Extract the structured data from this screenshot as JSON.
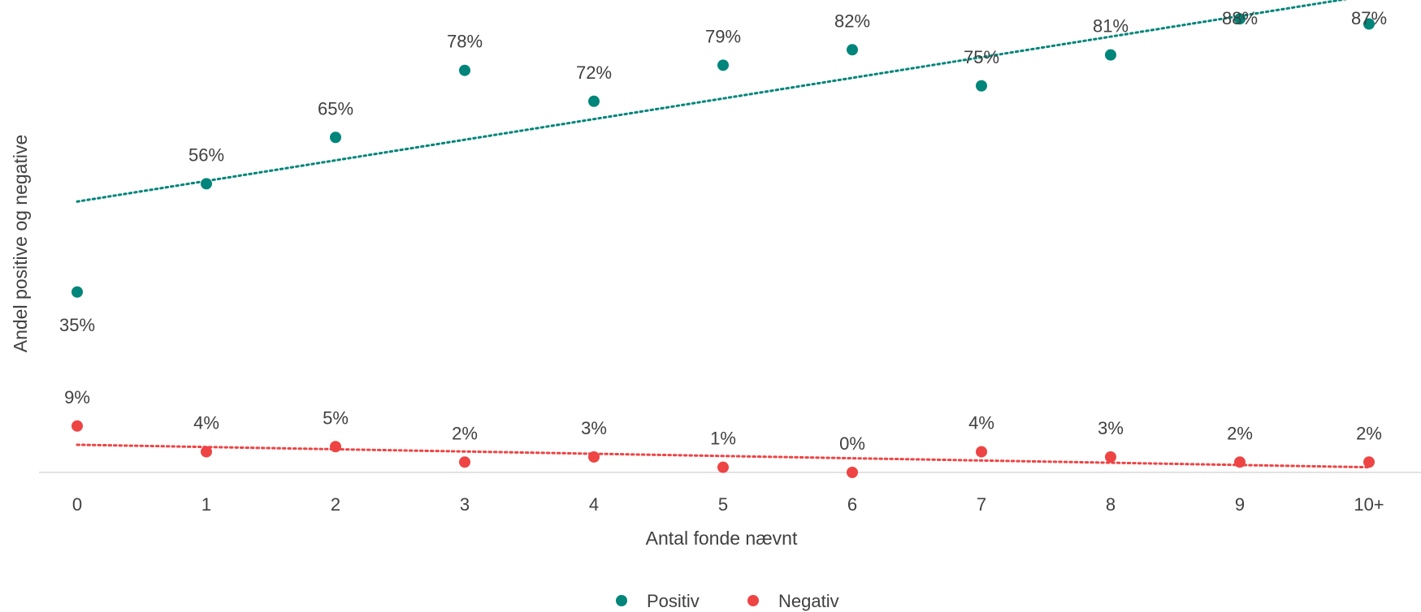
{
  "chart_data": {
    "type": "scatter",
    "title": "",
    "xlabel": "Antal fonde nævnt",
    "ylabel": "Andel positive og negative",
    "categories": [
      "0",
      "1",
      "2",
      "3",
      "4",
      "5",
      "6",
      "7",
      "8",
      "9",
      "10+"
    ],
    "ylim": [
      0,
      0.9
    ],
    "grid": false,
    "legend_position": "bottom",
    "series": [
      {
        "name": "Positiv",
        "color": "#00857A",
        "values": [
          0.35,
          0.56,
          0.65,
          0.78,
          0.72,
          0.79,
          0.82,
          0.75,
          0.81,
          0.88,
          0.87
        ],
        "labels": [
          "35%",
          "56%",
          "65%",
          "78%",
          "72%",
          "79%",
          "82%",
          "75%",
          "81%",
          "88%",
          "87%"
        ],
        "trendline": "linear"
      },
      {
        "name": "Negativ",
        "color": "#EE4444",
        "values": [
          0.09,
          0.04,
          0.05,
          0.02,
          0.03,
          0.01,
          0.0,
          0.04,
          0.03,
          0.02,
          0.02
        ],
        "labels": [
          "9%",
          "4%",
          "5%",
          "2%",
          "3%",
          "1%",
          "0%",
          "4%",
          "3%",
          "2%",
          "2%"
        ],
        "trendline": "linear"
      }
    ]
  }
}
